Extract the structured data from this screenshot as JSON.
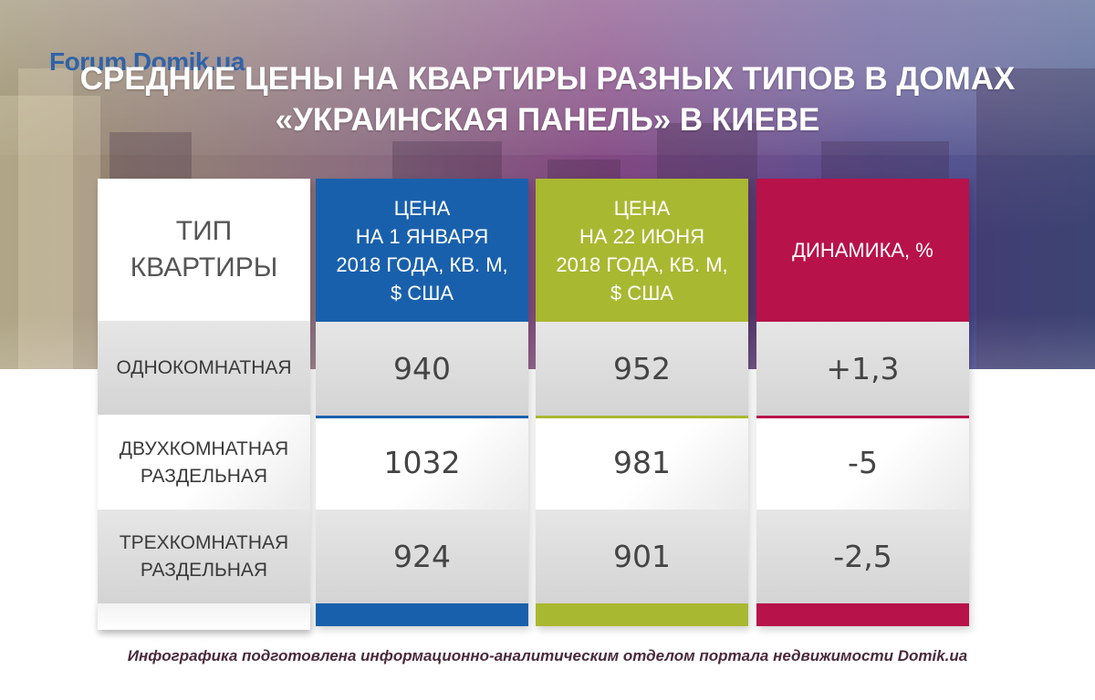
{
  "logo": "Forum.Domik.ua",
  "title_line1": "СРЕДНИЕ ЦЕНЫ НА КВАРТИРЫ РАЗНЫХ ТИПОВ В ДОМАХ",
  "title_line2": "«УКРАИНСКАЯ ПАНЕЛЬ» В КИЕВЕ",
  "colors": {
    "jan": "#1960ac",
    "jun": "#a9b831",
    "dynamics": "#b8124a"
  },
  "chart_data": {
    "type": "table",
    "title": "СРЕДНИЕ ЦЕНЫ НА КВАРТИРЫ РАЗНЫХ ТИПОВ В ДОМАХ «УКРАИНСКАЯ ПАНЕЛЬ» В КИЕВЕ",
    "columns": [
      "ТИП\nКВАРТИРЫ",
      "ЦЕНА\nНА 1 ЯНВАРЯ\n2018 ГОДА, КВ. М,\n$ США",
      "ЦЕНА\nНА 22 ИЮНЯ\n2018 ГОДА, КВ. М,\n$ США",
      "ДИНАМИКА, %"
    ],
    "rows": [
      [
        "ОДНОКОМНАТНАЯ",
        "940",
        "952",
        "+1,3"
      ],
      [
        "ДВУХКОМНАТНАЯ\nРАЗДЕЛЬНАЯ",
        "1032",
        "981",
        "-5"
      ],
      [
        "ТРЕХКОМНАТНАЯ\nРАЗДЕЛЬНАЯ",
        "924",
        "901",
        "-2,5"
      ]
    ]
  },
  "footer": "Инфографика подготовлена информационно-аналитическим отделом портала недвижимости Domik.ua"
}
